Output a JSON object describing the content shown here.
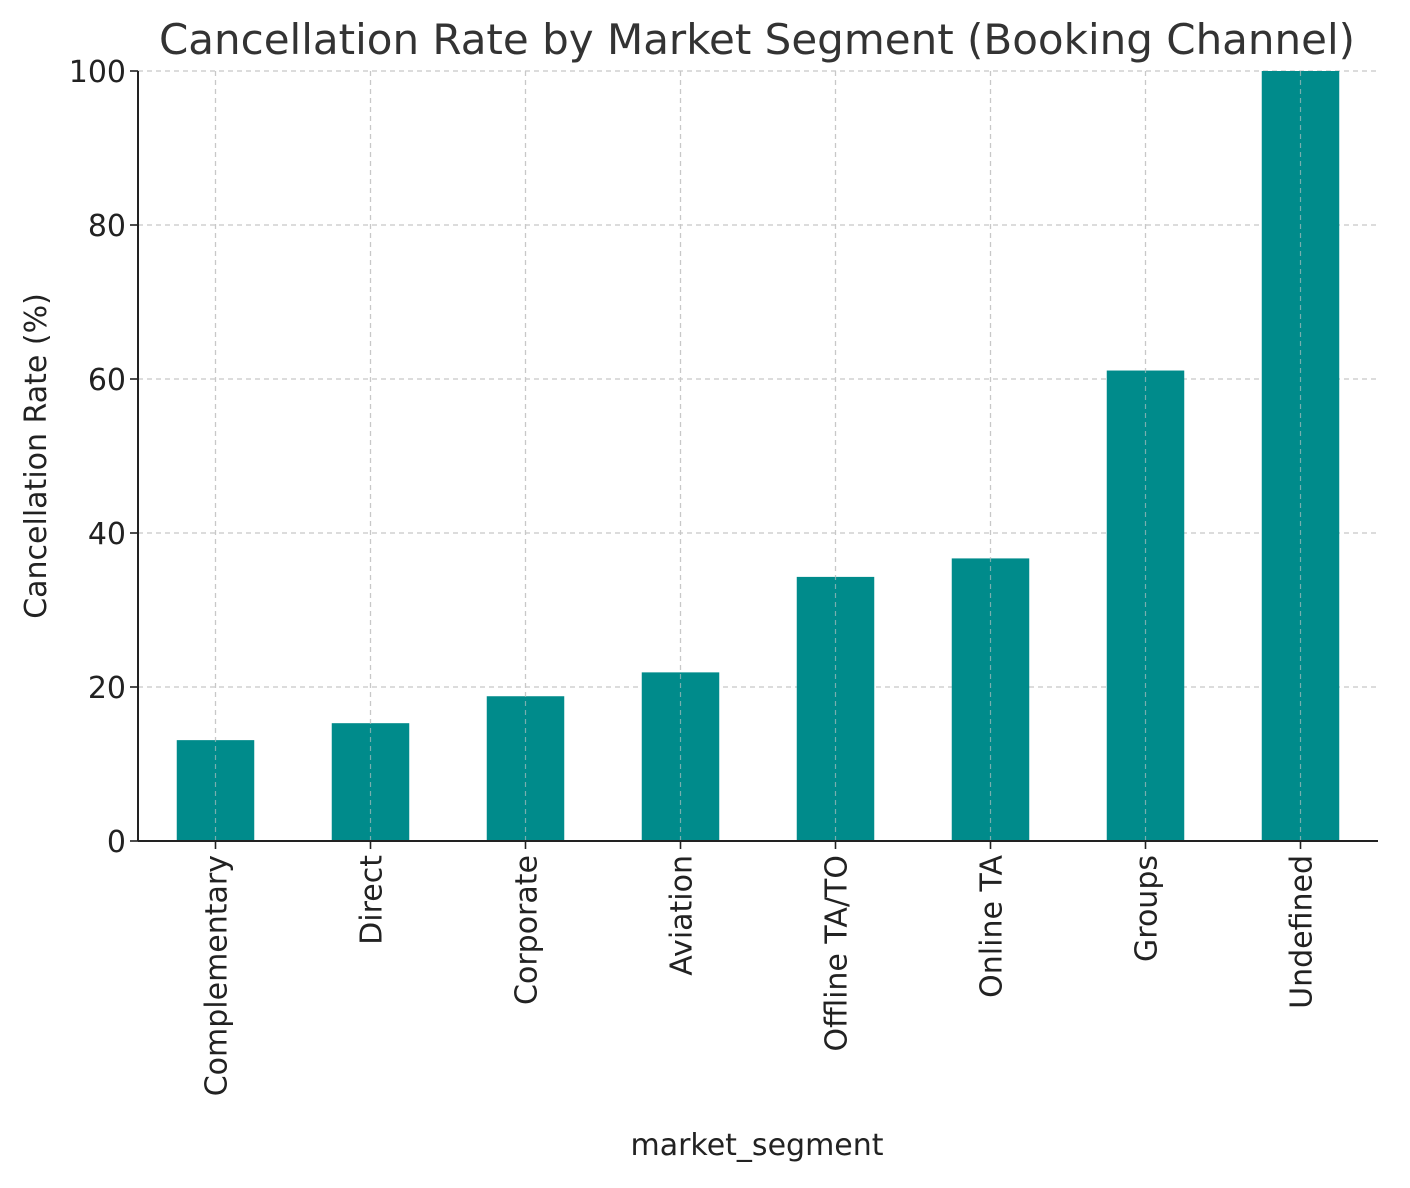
{
  "chart_data": {
    "type": "bar",
    "title": "Cancellation Rate by Market Segment (Booking Channel)",
    "xlabel": "market_segment",
    "ylabel": "Cancellation Rate (%)",
    "ylim": [
      0,
      100
    ],
    "yticks": [
      0,
      20,
      40,
      60,
      80,
      100
    ],
    "grid": true,
    "categories": [
      "Complementary",
      "Direct",
      "Corporate",
      "Aviation",
      "Offline TA/TO",
      "Online TA",
      "Groups",
      "Undefined"
    ],
    "values": [
      13.1,
      15.3,
      18.8,
      21.9,
      34.3,
      36.7,
      61.1,
      100.0
    ],
    "bar_color": "#008b8b"
  }
}
